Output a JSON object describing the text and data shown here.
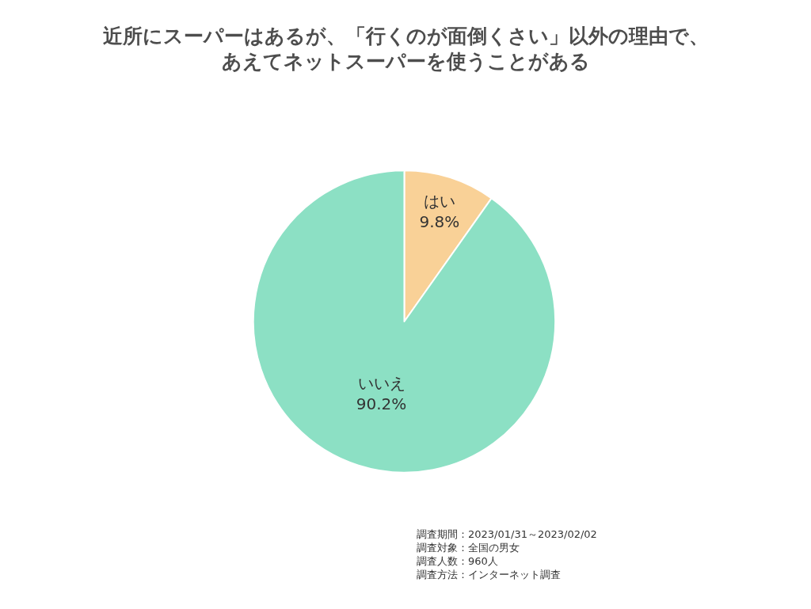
{
  "chart_data": {
    "type": "pie",
    "title": "近所にスーパーはあるが、「行くのが面倒くさい」以外の理由で、",
    "subtitle": "あえてネットスーパーを使うことがある",
    "categories": [
      "はい",
      "いいえ"
    ],
    "values": [
      9.8,
      90.2
    ],
    "value_labels": [
      "9.8%",
      "90.2%"
    ],
    "colors": [
      "#f9d197",
      "#8ce0c4"
    ],
    "legend": false,
    "annotations": [
      "調査期間：2023/01/31～2023/02/02",
      "調査対象：全国の男女",
      "調査人数：960人",
      "調査方法：インターネット調査"
    ]
  }
}
